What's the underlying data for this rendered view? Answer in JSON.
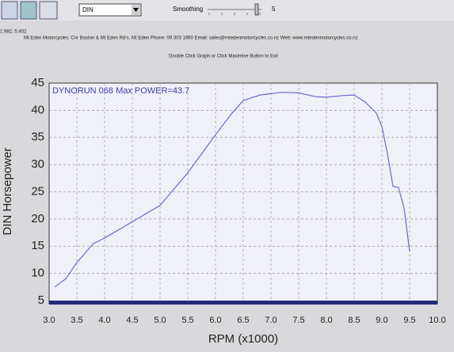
{
  "toolbar": {
    "dropdown": "DIN",
    "smoothing_label": "Smoothing",
    "smoothing_value": 5
  },
  "status": {
    "coordinates": "1.982, 5.402",
    "header": "Mt Eden Motorcycles: Cnr Boston & Mt Eden Rd's, Mt Eden  Phone: 09 303 1960  Email: sales@mtedenmotorcycles.co.nz  Web: www.mtedenmotorcycles.co.nz",
    "hint": "Double Click Graph or Click Maximise Button to Exit"
  },
  "chart_data": {
    "type": "line",
    "annotation": "DYNORUN 068  Max POWER=43.7",
    "x_label": "RPM (x1000)",
    "y_label": "DIN Horsepower",
    "x": [
      3.1,
      3.3,
      3.5,
      3.8,
      4.0,
      4.5,
      5.0,
      5.5,
      6.0,
      6.3,
      6.5,
      6.8,
      7.2,
      7.5,
      7.8,
      8.0,
      8.3,
      8.5,
      8.7,
      8.9,
      9.0,
      9.1,
      9.2,
      9.3,
      9.4,
      9.5
    ],
    "series": [
      {
        "name": "DYNORUN 068",
        "color": "#6b6bc9",
        "values": [
          7.5,
          9,
          12,
          15.5,
          16.5,
          19.5,
          22.5,
          28.5,
          35.5,
          39.5,
          41.8,
          42.8,
          43.3,
          43.2,
          42.5,
          42.4,
          42.7,
          42.8,
          41.5,
          39.5,
          37,
          32,
          26,
          25.8,
          22,
          14
        ]
      }
    ],
    "xlim": [
      3,
      10
    ],
    "ylim": [
      5,
      45
    ],
    "xticks": [
      {
        "value": 3,
        "label": "3.0"
      },
      3.5,
      {
        "value": 4,
        "label": "4.0"
      },
      4.5,
      {
        "value": 5,
        "label": "5.0"
      },
      5.5,
      {
        "value": 6,
        "label": "6.0"
      },
      6.5,
      {
        "value": 7,
        "label": "7.0"
      },
      7.5,
      {
        "value": 8,
        "label": "8.0"
      },
      8.5,
      {
        "value": 9,
        "label": "9.0"
      },
      9.5,
      {
        "value": 10,
        "label": "10.0"
      }
    ],
    "yticks": [
      5,
      10,
      15,
      20,
      25,
      30,
      35,
      40,
      45
    ],
    "grid": true
  }
}
